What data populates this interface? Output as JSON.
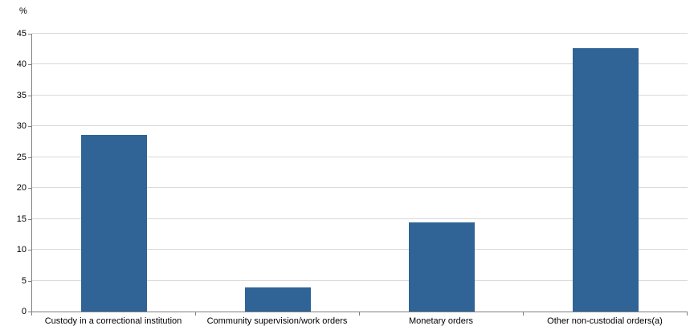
{
  "chart_data": {
    "type": "bar",
    "title": "",
    "xlabel": "",
    "ylabel": "%",
    "categories": [
      "Custody in a correctional institution",
      "Community supervision/work orders",
      "Monetary orders",
      "Other non-custodial orders(a)"
    ],
    "values": [
      28.6,
      3.9,
      14.4,
      42.6
    ],
    "ylim": [
      0,
      45
    ],
    "ytick_step": 5,
    "grid": true,
    "legend": "none",
    "bar_color": "#306396",
    "gridline_color": "#d9d9d9",
    "axis_color": "#808080",
    "text_color": "#000000"
  }
}
